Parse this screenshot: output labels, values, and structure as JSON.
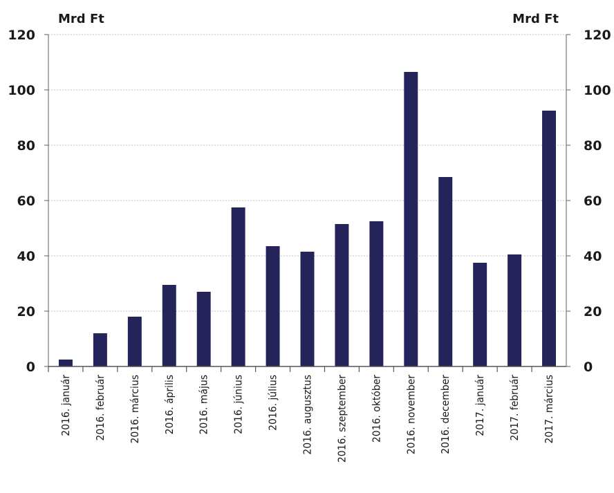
{
  "chart_data": {
    "type": "bar",
    "left_unit": "Mrd Ft",
    "right_unit": "Mrd Ft",
    "categories": [
      "2016. január",
      "2016. február",
      "2016. március",
      "2016. április",
      "2016. május",
      "2016. június",
      "2016. július",
      "2016. augusztus",
      "2016. szeptember",
      "2016. október",
      "2016. november",
      "2016. december",
      "2017. január",
      "2017. február",
      "2017. március"
    ],
    "values": [
      2.5,
      12,
      18,
      29.5,
      27,
      57.5,
      43.5,
      41.5,
      51.5,
      52.5,
      106.5,
      68.5,
      37.5,
      40.5,
      92.5
    ],
    "ylim": [
      0,
      120
    ],
    "yticks": [
      0,
      20,
      40,
      60,
      80,
      100,
      120
    ],
    "grid": true,
    "bar_color": "#24245a"
  }
}
